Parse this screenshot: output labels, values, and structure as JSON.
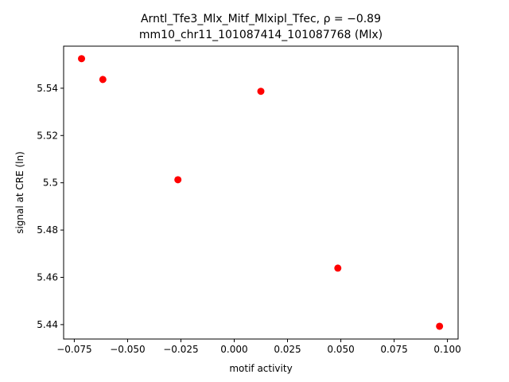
{
  "chart_data": {
    "type": "scatter",
    "title": "Arntl_Tfe3_Mlx_Mitf_Mlxipl_Tfec, ρ = −0.89",
    "subtitle": "mm10_chr11_101087414_101087768 (Mlx)",
    "x_label": "motif activity",
    "y_label": "signal at CRE (ln)",
    "x": [
      -0.0716,
      -0.0616,
      -0.0264,
      0.0125,
      0.0486,
      0.0963
    ],
    "values": [
      5.5525,
      5.5437,
      5.5013,
      5.5387,
      5.4639,
      5.4393
    ],
    "color": "#ff0000",
    "xlim": [
      -0.08,
      0.105
    ],
    "ylim": [
      5.4339,
      5.5578
    ],
    "xticks": [
      {
        "value": -0.075,
        "label": "−0.075"
      },
      {
        "value": -0.05,
        "label": "−0.050"
      },
      {
        "value": -0.025,
        "label": "−0.025"
      },
      {
        "value": 0,
        "label": "0.000"
      },
      {
        "value": 0.025,
        "label": "0.025"
      },
      {
        "value": 0.05,
        "label": "0.050"
      },
      {
        "value": 0.075,
        "label": "0.075"
      },
      {
        "value": 0.1,
        "label": "0.100"
      }
    ],
    "yticks": [
      5.44,
      5.46,
      5.48,
      5.5,
      5.52,
      5.54
    ]
  }
}
